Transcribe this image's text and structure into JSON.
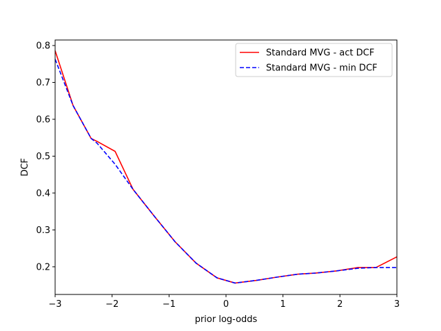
{
  "chart_data": {
    "type": "line",
    "title": "",
    "xlabel": "prior log-odds",
    "ylabel": "DCF",
    "xlim": [
      -3,
      3
    ],
    "ylim": [
      0.125,
      0.815
    ],
    "xticks": [
      -3,
      -2,
      -1,
      0,
      1,
      2,
      3
    ],
    "xtick_labels": [
      "−3",
      "−2",
      "−1",
      "0",
      "1",
      "2",
      "3"
    ],
    "yticks": [
      0.2,
      0.3,
      0.4,
      0.5,
      0.6,
      0.7,
      0.8
    ],
    "ytick_labels": [
      "0.2",
      "0.3",
      "0.4",
      "0.5",
      "0.6",
      "0.7",
      "0.8"
    ],
    "grid": false,
    "legend_position": "top-right",
    "x": [
      -3.0,
      -2.684,
      -2.368,
      -2.263,
      -1.947,
      -1.632,
      -1.263,
      -0.895,
      -0.526,
      -0.158,
      0.158,
      0.526,
      0.895,
      1.263,
      1.579,
      1.947,
      2.316,
      2.632,
      3.0
    ],
    "series": [
      {
        "name": "Standard MVG  - act DCF",
        "color": "#ff0000",
        "dash": "solid",
        "values": [
          0.786,
          0.637,
          0.548,
          0.54,
          0.513,
          0.41,
          0.338,
          0.268,
          0.21,
          0.17,
          0.156,
          0.163,
          0.172,
          0.18,
          0.183,
          0.189,
          0.198,
          0.198,
          0.227
        ]
      },
      {
        "name": "Standard MVG  - min DCF",
        "color": "#0000ff",
        "dash": "dashed",
        "values": [
          0.763,
          0.637,
          0.548,
          0.535,
          0.478,
          0.41,
          0.338,
          0.268,
          0.21,
          0.17,
          0.156,
          0.163,
          0.172,
          0.18,
          0.183,
          0.189,
          0.196,
          0.198,
          0.198
        ]
      }
    ]
  }
}
